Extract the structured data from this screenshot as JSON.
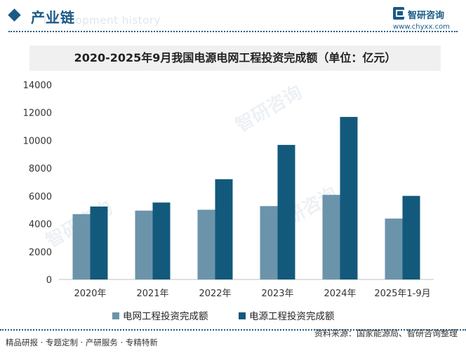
{
  "header": {
    "title": "产业链",
    "watermark_text": "Development history"
  },
  "logo": {
    "name": "智研咨询",
    "url": "www.chyxx.com"
  },
  "chart_data": {
    "type": "bar",
    "title": "2020-2025年9月我国电源电网工程投资完成额（单位：亿元）",
    "categories": [
      "2020年",
      "2021年",
      "2022年",
      "2023年",
      "2024年",
      "2025年1-9月"
    ],
    "series": [
      {
        "name": "电网工程投资完成额",
        "color": "#6b94ab",
        "values": [
          4699,
          4951,
          5012,
          5275,
          6083,
          4378
        ]
      },
      {
        "name": "电源工程投资完成额",
        "color": "#13597c",
        "values": [
          5244,
          5530,
          7208,
          9675,
          11687,
          6009
        ]
      }
    ],
    "ylim": [
      0,
      14000
    ],
    "yticks": [
      0,
      2000,
      4000,
      6000,
      8000,
      10000,
      12000,
      14000
    ],
    "xlabel": "",
    "ylabel": ""
  },
  "watermark": {
    "text": "智研咨询"
  },
  "footer": {
    "left": "精品研报 · 专题定制 · 产研服务 · 专精特新",
    "right": "资料来源：国家能源局、智研咨询整理"
  }
}
